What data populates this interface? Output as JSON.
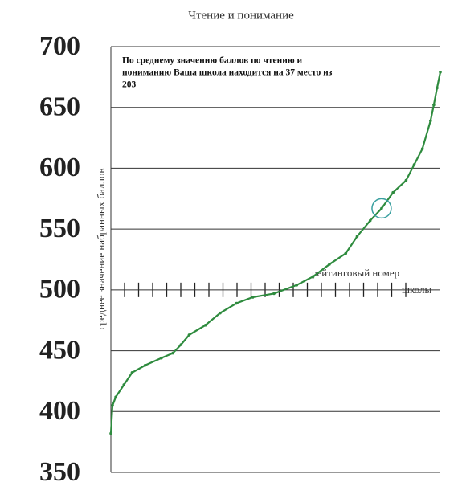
{
  "chart_data": {
    "type": "line",
    "title": "Чтение и понимание",
    "y_label": "среднее значение набранных баллов",
    "x_label": [
      "рейтинговый номер",
      "школы"
    ],
    "annotation": [
      "По среднему значению баллов по чтению и",
      "пониманию Ваша школа находится на  37 место из",
      "203"
    ],
    "x": [
      1,
      2,
      4,
      9,
      14,
      22,
      32,
      39,
      44,
      49,
      59,
      68,
      78,
      88,
      101,
      115,
      125,
      135,
      145,
      152,
      160,
      167,
      174,
      182,
      187,
      192,
      197,
      199,
      201,
      203
    ],
    "values": [
      382,
      405,
      412,
      422,
      432,
      438,
      444,
      448,
      455,
      463,
      471,
      481,
      489,
      494,
      497,
      504,
      511,
      521,
      530,
      544,
      557,
      567,
      580,
      590,
      603,
      616,
      639,
      652,
      666,
      679
    ],
    "color": "#2e8b3e",
    "highlight_index": 21,
    "xlim": [
      1,
      203
    ],
    "ylim": [
      350,
      700
    ],
    "yticks": [
      350,
      400,
      450,
      500,
      550,
      600,
      650,
      700
    ],
    "grid": true
  }
}
